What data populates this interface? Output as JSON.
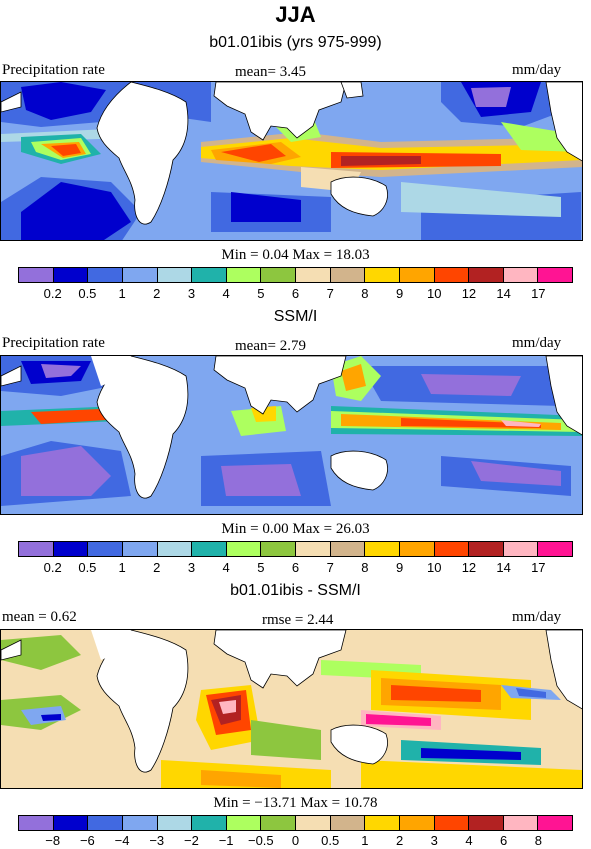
{
  "title": "JJA",
  "panels": [
    {
      "subtitle": "b01.01ibis (yrs 975-999)",
      "left_label": "Precipitation rate",
      "center_label": "mean=   3.45",
      "right_label": "mm/day",
      "minmax": "Min =   0.04  Max =   18.03",
      "colorbar_ticks": [
        "0.2",
        "0.5",
        "1",
        "2",
        "3",
        "4",
        "5",
        "6",
        "7",
        "8",
        "9",
        "10",
        "12",
        "14",
        "17"
      ]
    },
    {
      "subtitle": "SSM/I",
      "left_label": "Precipitation rate",
      "center_label": "mean=   2.79",
      "right_label": "mm/day",
      "minmax": "Min =   0.00  Max =   26.03",
      "colorbar_ticks": [
        "0.2",
        "0.5",
        "1",
        "2",
        "3",
        "4",
        "5",
        "6",
        "7",
        "8",
        "9",
        "10",
        "12",
        "14",
        "17"
      ]
    },
    {
      "subtitle": "b01.01ibis - SSM/I",
      "left_label": "mean =   0.62",
      "center_label": "rmse =   2.44",
      "right_label": "mm/day",
      "minmax": "Min = −13.71  Max =   10.78",
      "colorbar_ticks": [
        "−8",
        "−6",
        "−4",
        "−3",
        "−2",
        "−1",
        "−0.5",
        "0",
        "0.5",
        "1",
        "2",
        "3",
        "4",
        "6",
        "8"
      ]
    }
  ],
  "colors": {
    "precip": [
      "#9370DB",
      "#0000CD",
      "#4169E1",
      "#7FA7F0",
      "#ADD8E6",
      "#20B2AA",
      "#ADFF5F",
      "#8DC63F",
      "#F5DEB3",
      "#D2B48C",
      "#FFD700",
      "#FFA500",
      "#FF4500",
      "#B22222",
      "#FFB6C1",
      "#FF1493"
    ],
    "diff": [
      "#9370DB",
      "#0000CD",
      "#4169E1",
      "#7FA7F0",
      "#ADD8E6",
      "#20B2AA",
      "#ADFF5F",
      "#8DC63F",
      "#F5DEB3",
      "#D2B48C",
      "#FFD700",
      "#FFA500",
      "#FF4500",
      "#B22222",
      "#FFB6C1",
      "#FF1493"
    ]
  }
}
